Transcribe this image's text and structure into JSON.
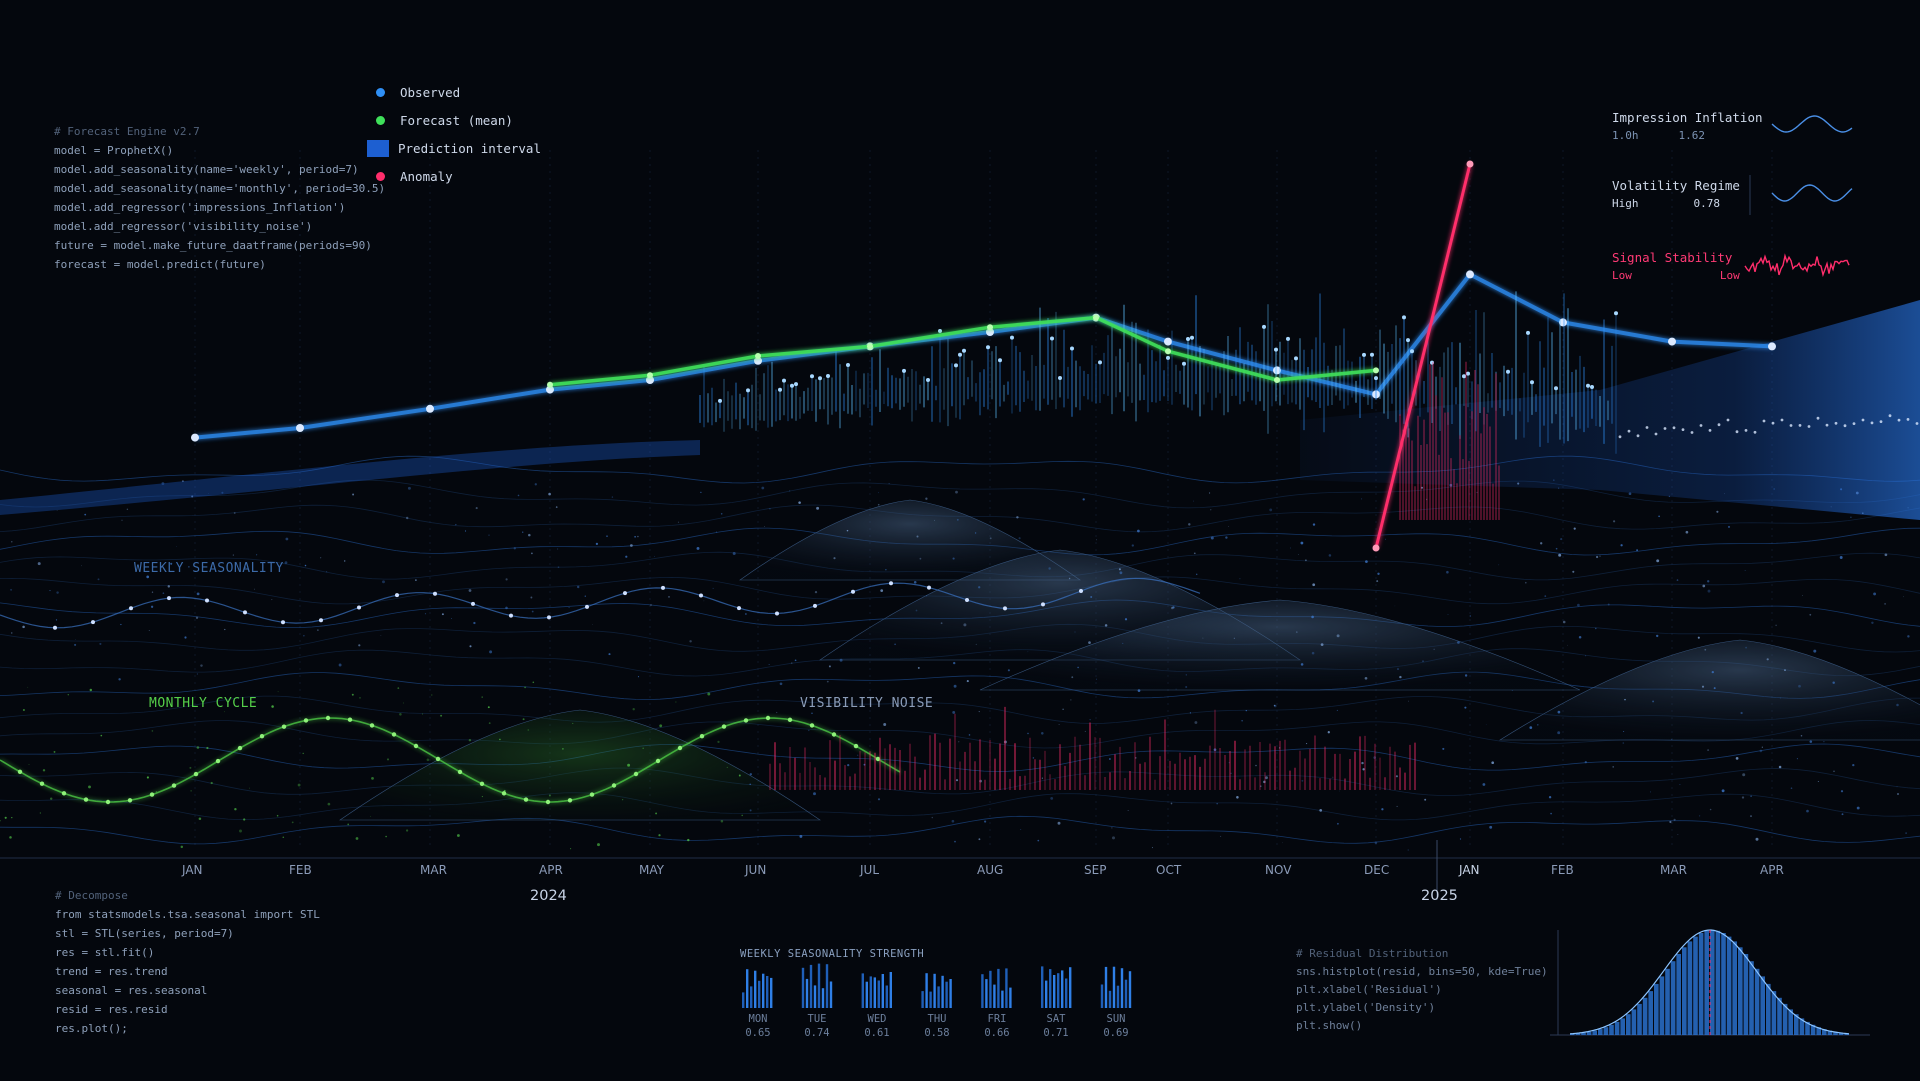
{
  "code_top": [
    "# Forecast Engine v2.7",
    "model = ProphetX()",
    "model.add_seasonality(name='weekly', period=7)",
    "model.add_seasonality(name='monthly', period=30.5)",
    "model.add_regressor('impressions_Inflation')",
    "model.add_regressor('visibility_noise')",
    "",
    "future = model.make_future_daatframe(periods=90)",
    "forecast = model.predict(future)"
  ],
  "code_bottom": [
    "# Decompose",
    "from statsmodels.tsa.seasonal import STL",
    "stl = STL(series, period=7)",
    "res = stl.fit()",
    "trend = res.trend",
    "seasonal = res.seasonal",
    "resid = res.resid",
    "res.plot();"
  ],
  "code_resid": [
    "# Residual Distribution",
    "sns.histplot(resid, bins=50, kde=True)",
    "plt.xlabel('Residual')",
    "plt.ylabel('Density')",
    "plt.show()"
  ],
  "legend": [
    {
      "label": "Observed",
      "color": "#2f8ff5",
      "kind": "dot"
    },
    {
      "label": "Forecast (mean)",
      "color": "#3fe05a",
      "kind": "dot"
    },
    {
      "label": "Prediction interval",
      "color": "#1d5fd1",
      "kind": "box"
    },
    {
      "label": "Anomaly",
      "color": "#ff2d6b",
      "kind": "dot"
    }
  ],
  "metrics": {
    "impression": {
      "title": "Impression Inflation",
      "left": "1.0h",
      "value": "1.62"
    },
    "volatility": {
      "title": "Volatility Regime",
      "left": "High",
      "value": "0.78"
    },
    "stability": {
      "title": "Signal Stability",
      "left": "Low",
      "right": "Low"
    }
  },
  "annotations": {
    "weekly": "WEEKLY SEASONALITY",
    "monthly": "MONTHLY CYCLE",
    "noise": "VISIBILITY NOISE"
  },
  "colors": {
    "observed": "#2f8ff5",
    "forecast": "#3fe05a",
    "interval": "#1d5fd1",
    "anomaly": "#ff2d6b",
    "background": "#04070d"
  },
  "chart_data": [
    {
      "type": "line",
      "title": "",
      "x_tick_labels": [
        "JAN",
        "FEB",
        "MAR",
        "APR",
        "MAY",
        "JUN",
        "JUL",
        "AUG",
        "SEP",
        "OCT",
        "NOV",
        "DEC",
        "JAN",
        "FEB",
        "MAR",
        "APR"
      ],
      "year_labels": [
        "2024",
        "2025"
      ],
      "xlim": [
        "2024-01",
        "2025-04"
      ],
      "grid": true,
      "legend": "top-left",
      "series": [
        {
          "name": "Observed",
          "x": [
            "2024-01",
            "2024-02",
            "2024-03",
            "2024-04",
            "2024-05",
            "2024-06",
            "2024-07",
            "2024-08",
            "2024-09",
            "2024-10",
            "2024-11",
            "2024-12",
            "2025-01",
            "2025-02",
            "2025-03",
            "2025-04"
          ],
          "values": [
            0.38,
            0.4,
            0.44,
            0.48,
            0.5,
            0.54,
            0.57,
            0.6,
            0.63,
            0.58,
            0.52,
            0.47,
            0.72,
            0.62,
            0.58,
            0.57
          ]
        },
        {
          "name": "Forecast (mean)",
          "x": [
            "2024-04",
            "2024-05",
            "2024-06",
            "2024-07",
            "2024-08",
            "2024-09",
            "2024-10",
            "2024-11",
            "2024-12"
          ],
          "values": [
            0.49,
            0.51,
            0.55,
            0.57,
            0.61,
            0.63,
            0.56,
            0.5,
            0.52
          ]
        },
        {
          "name": "Anomaly",
          "x": [
            "2024-12",
            "2025-01"
          ],
          "values": [
            0.15,
            0.95
          ]
        }
      ]
    },
    {
      "type": "bar",
      "title": "WEEKLY SEASONALITY STRENGTH",
      "categories": [
        "MON",
        "TUE",
        "WED",
        "THU",
        "FRI",
        "SAT",
        "SUN"
      ],
      "values": [
        0.65,
        0.74,
        0.61,
        0.58,
        0.66,
        0.71,
        0.69
      ]
    },
    {
      "type": "bar",
      "title": "Residual Distribution",
      "xlabel": "Residual",
      "ylabel": "Density",
      "bins": 50
    }
  ]
}
